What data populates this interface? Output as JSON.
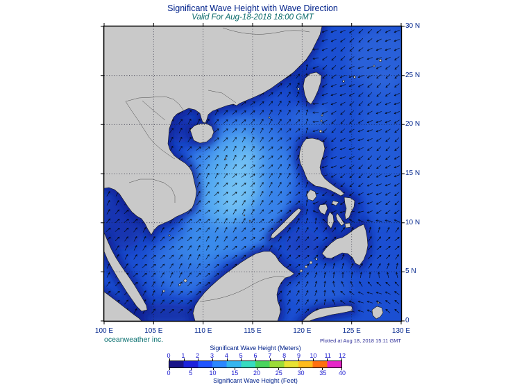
{
  "header": {
    "title": "Significant Wave Height with Wave Direction",
    "subtitle": "Valid For Aug-18-2018 18:00 GMT"
  },
  "map": {
    "lat_labels": [
      "30 N",
      "25 N",
      "20 N",
      "15 N",
      "10 N",
      "5 N",
      "0"
    ],
    "lon_labels": [
      "100 E",
      "105 E",
      "110 E",
      "115 E",
      "120 E",
      "125 E",
      "130 E"
    ],
    "credit": "oceanweather inc.",
    "plotted_note": "Plotted at Aug 18, 2018 15:11 GMT"
  },
  "colorbar": {
    "top_label": "Significant Wave Height (Meters)",
    "bottom_label": "Significant Wave Height (Feet)",
    "meters_ticks": [
      "0",
      "1",
      "2",
      "3",
      "4",
      "5",
      "6",
      "7",
      "8",
      "9",
      "10",
      "11",
      "12"
    ],
    "feet_ticks": [
      "0",
      "5",
      "10",
      "15",
      "20",
      "25",
      "30",
      "35",
      "40"
    ],
    "gradient_blocks": [
      "#191489",
      "#1c22dc",
      "#2155ff",
      "#2c87ff",
      "#36b6ee",
      "#38dcc0",
      "#4ad45e",
      "#9cdc38",
      "#e8e232",
      "#ffbc1c",
      "#fe7010",
      "#e626c8"
    ]
  },
  "colors": {
    "ocean_base": "#1b4fd2",
    "land": "#c9c9c9",
    "coastline": "#1a1a1a",
    "arrow": "#000000",
    "title_text": "#00218a",
    "subtitle_text": "#0a6a6a",
    "axis_text": "#00248c",
    "tick_text": "#1717cf",
    "credit_text": "#0a7070",
    "plotted_text": "#32329a"
  },
  "chart_data": {
    "type": "heatmap",
    "title": "Significant Wave Height with Wave Direction",
    "valid_time": "Aug-18-2018 18:00 GMT",
    "plotted_time": "Aug 18, 2018 15:11 GMT",
    "lon_range_deg_e": [
      100,
      130
    ],
    "lat_range_deg_n": [
      0,
      30
    ],
    "grid_interval_deg": 5,
    "colorbar_meters": {
      "min": 0,
      "max": 12,
      "ticks": [
        0,
        1,
        2,
        3,
        4,
        5,
        6,
        7,
        8,
        9,
        10,
        11,
        12
      ]
    },
    "colorbar_feet": {
      "min": 0,
      "max": 40,
      "ticks": [
        0,
        5,
        10,
        15,
        20,
        25,
        30,
        35,
        40
      ]
    },
    "depicted": "Significant wave height shading (approx. 0-3 m over the South China Sea and Philippine Sea; brightest ~2.5-3 m patch in the central South China Sea near 112-115E 11-16N; darkest <1 m along coasts, Gulf of Tonkin and Gulf of Thailand) with wave direction arrows heading NE over the South China Sea and SW over the Philippine Sea"
  }
}
